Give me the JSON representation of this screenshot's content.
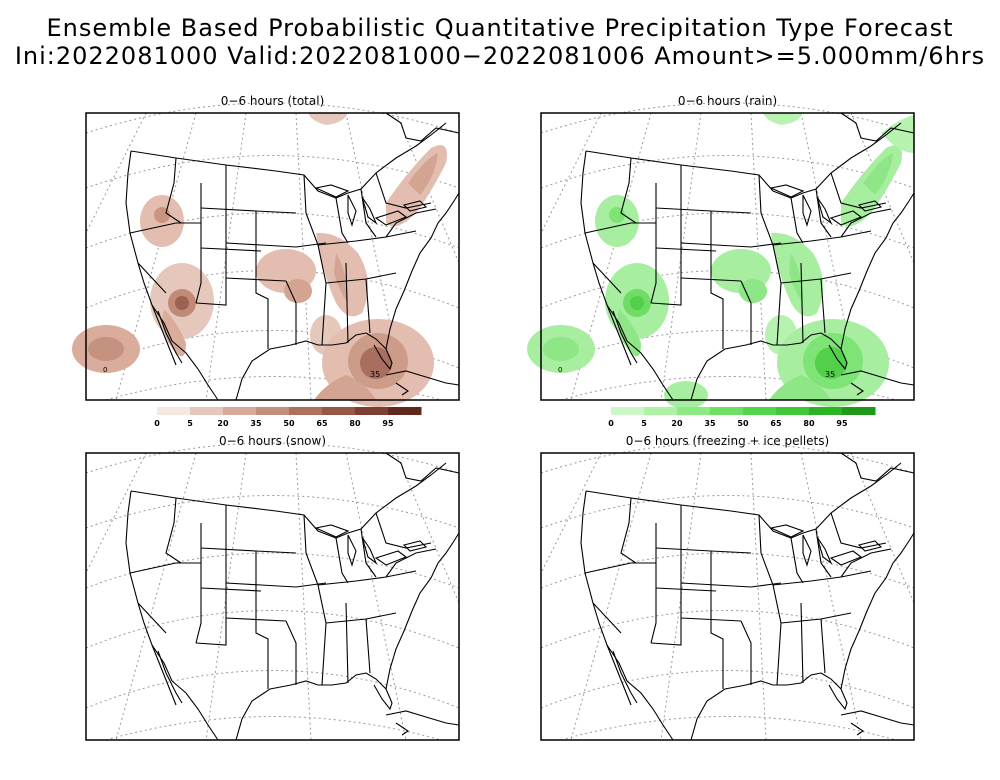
{
  "header": {
    "title_line1": "Ensemble Based Probabilistic Quantitative Precipitation Type Forecast",
    "title_line2": "Ini:2022081000 Valid:2022081000−2022081006 Amount>=5.000mm/6hrs"
  },
  "panels": [
    {
      "id": "total",
      "title": "0−6 hours (total)"
    },
    {
      "id": "rain",
      "title": "0−6 hours (rain)"
    },
    {
      "id": "snow",
      "title": "0−6 hours (snow)"
    },
    {
      "id": "freezing",
      "title": "0−6 hours (freezing + ice pellets)"
    }
  ],
  "legend_total": {
    "labels": [
      "0",
      "5",
      "20",
      "35",
      "50",
      "65",
      "80",
      "95"
    ],
    "colors": [
      "#f6e7e1",
      "#e6c7bc",
      "#d6a99a",
      "#c38d7c",
      "#ad705f",
      "#955746",
      "#7c3f31",
      "#63281d"
    ]
  },
  "legend_rain": {
    "labels": [
      "0",
      "5",
      "20",
      "35",
      "50",
      "65",
      "80",
      "95"
    ],
    "colors": [
      "#cdf7c8",
      "#aef2a6",
      "#8cea84",
      "#6ee066",
      "#52d54b",
      "#3fc737",
      "#2db225",
      "#1f9a18"
    ]
  },
  "contour_labels": {
    "total_35": "35",
    "rain_35": "35",
    "zero": "0"
  }
}
